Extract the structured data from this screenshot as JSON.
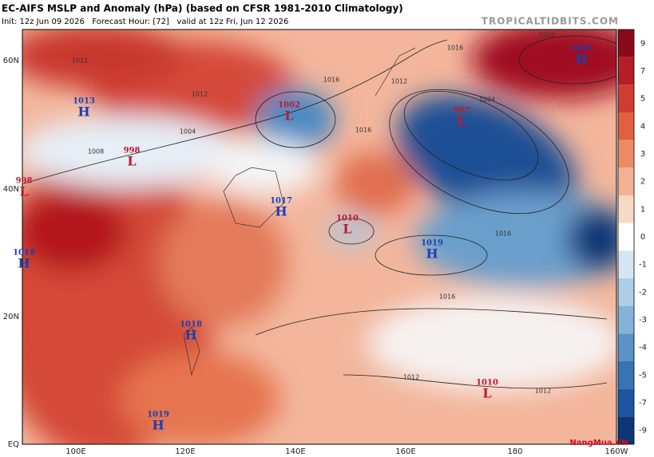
{
  "header": {
    "title": "EC-AIFS MSLP and Anomaly (hPa) (based on CFSR 1981-2010 Climatology)",
    "subtitle": "Init: 12z Jun 09 2026   Forecast Hour: [72]   valid at 12z Fri, Jun 12 2026",
    "site": "TROPICALTIDBITS.COM"
  },
  "map": {
    "lat_labels": [
      "60N",
      "40N",
      "20N",
      "EQ"
    ],
    "lon_labels": [
      "100E",
      "120E",
      "140E",
      "160E",
      "180",
      "160W"
    ],
    "centers": [
      {
        "letter": "H",
        "value": "1013"
      },
      {
        "letter": "L",
        "value": "998"
      },
      {
        "letter": "L",
        "value": "998"
      },
      {
        "letter": "H",
        "value": "1019"
      },
      {
        "letter": "L",
        "value": "1002"
      },
      {
        "letter": "H",
        "value": "1017"
      },
      {
        "letter": "L",
        "value": "1010"
      },
      {
        "letter": "H",
        "value": "1019"
      },
      {
        "letter": "L",
        "value": "997"
      },
      {
        "letter": "H",
        "value": "1025"
      },
      {
        "letter": "L",
        "value": "1010"
      },
      {
        "letter": "H",
        "value": "1018"
      },
      {
        "letter": "H",
        "value": "1019"
      }
    ],
    "isobar_labels": [
      "1012",
      "1008",
      "1004",
      "1016",
      "1012",
      "1016",
      "1016",
      "1016",
      "1012",
      "1012",
      "1020",
      "1016",
      "1012",
      "1004"
    ]
  },
  "colorbar": {
    "ticks": [
      9,
      7,
      5,
      4,
      3,
      2,
      1,
      0,
      -1,
      -2,
      -3,
      -4,
      -5,
      -7,
      -9
    ],
    "colors": [
      "#8b0a1a",
      "#b41f26",
      "#cf3c32",
      "#e0603f",
      "#ec8a66",
      "#f4b194",
      "#f9d8c6",
      "#ffffff",
      "#d5e6f2",
      "#aecde6",
      "#85b2d8",
      "#5b93c6",
      "#3873b3",
      "#1d55a0",
      "#0c3675"
    ]
  },
  "watermark": "NangMua.VN"
}
